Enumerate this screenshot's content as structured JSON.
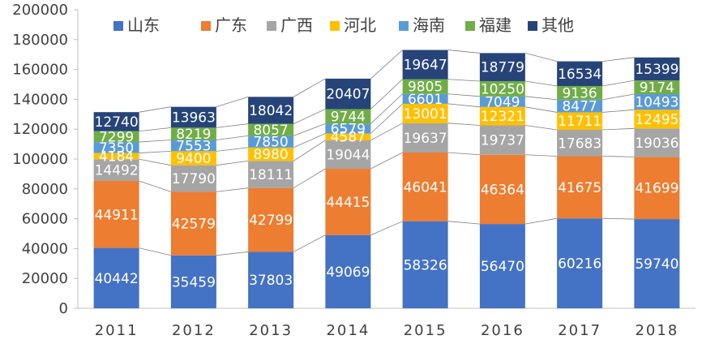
{
  "chart_data": {
    "type": "bar",
    "stacked": true,
    "title": "",
    "xlabel": "",
    "ylabel": "",
    "categories": [
      "2011",
      "2012",
      "2013",
      "2014",
      "2015",
      "2016",
      "2017",
      "2018"
    ],
    "ylim": [
      0,
      200000
    ],
    "yticks": [
      0,
      20000,
      40000,
      60000,
      80000,
      100000,
      120000,
      140000,
      160000,
      180000,
      200000
    ],
    "ytick_labels": [
      "0",
      "20000",
      "40000",
      "60000",
      "80000",
      "100000",
      "120000",
      "140000",
      "160000",
      "180000",
      "200000"
    ],
    "legend_position": "top",
    "series_lines": true,
    "series": [
      {
        "name": "山东",
        "color": "#4472C4",
        "values": [
          40442,
          35459,
          37803,
          49069,
          58326,
          56470,
          60216,
          59740
        ]
      },
      {
        "name": "广东",
        "color": "#ED7D31",
        "values": [
          44911,
          42579,
          42799,
          44415,
          46041,
          46364,
          41675,
          41699
        ]
      },
      {
        "name": "广西",
        "color": "#A5A5A5",
        "values": [
          14492,
          17790,
          18111,
          19044,
          19637,
          19737,
          17683,
          19036
        ]
      },
      {
        "name": "河北",
        "color": "#FFC000",
        "values": [
          4184,
          9400,
          8980,
          4587,
          13001,
          12321,
          11711,
          12495
        ]
      },
      {
        "name": "海南",
        "color": "#5B9BD5",
        "values": [
          7350,
          7553,
          7850,
          6579,
          6601,
          7049,
          8477,
          10493
        ]
      },
      {
        "name": "福建",
        "color": "#70AD47",
        "values": [
          7299,
          8219,
          8057,
          9744,
          9805,
          10250,
          9136,
          9174
        ]
      },
      {
        "name": "其他",
        "color": "#264478",
        "values": [
          12740,
          13963,
          18042,
          20407,
          19647,
          18779,
          16534,
          15399
        ]
      }
    ]
  }
}
